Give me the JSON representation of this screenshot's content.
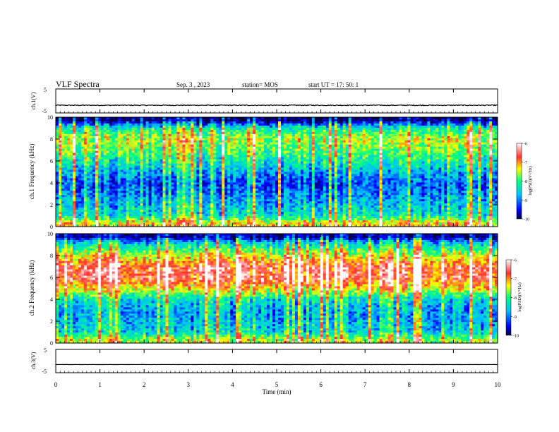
{
  "header": {
    "title": "VLF Spectra",
    "date": "Sep. 3  , 2023",
    "station": "station= MOS",
    "start": "start  UT =   17: 50: 1"
  },
  "colors": {
    "spectrum_scale": [
      "#000040",
      "#0000ff",
      "#00bfff",
      "#00ff80",
      "#ffff00",
      "#ff3030",
      "#ffffff"
    ],
    "frame": "#000000"
  },
  "chart_data": [
    {
      "type": "line",
      "ylabel": "ch.1(V)",
      "yticks": [
        "5",
        "-5"
      ],
      "ylim": [
        -5,
        5
      ],
      "x": [
        0,
        10
      ],
      "y": [
        -1.8,
        -1.8
      ]
    },
    {
      "type": "heatmap",
      "ylabel": "ch.1  Frequency (kHz)",
      "yticks": [
        "0",
        "2",
        "4",
        "6",
        "8",
        "10"
      ],
      "ylim": [
        0,
        10
      ],
      "xlim": [
        0,
        10
      ],
      "colorbar": {
        "label": "log(PSD)(V²/Hz)",
        "ticks": [
          "-6",
          "-7",
          "-8",
          "-9",
          "-10"
        ],
        "range": [
          -10,
          -6
        ]
      },
      "profile_freq_khz": [
        0.3,
        1,
        2,
        3,
        4,
        5,
        6,
        7,
        8,
        9,
        9.7
      ],
      "profile_log_psd": [
        -7.2,
        -8.3,
        -8.6,
        -8.9,
        -9.1,
        -8.7,
        -8.2,
        -7.8,
        -7.5,
        -8.2,
        -9.8
      ]
    },
    {
      "type": "heatmap",
      "ylabel": "ch.2  Frequency (kHz)",
      "yticks": [
        "0",
        "2",
        "4",
        "6",
        "8",
        "10"
      ],
      "ylim": [
        0,
        10
      ],
      "xlim": [
        0,
        10
      ],
      "colorbar": {
        "label": "log(PSD)(V²/Hz)",
        "ticks": [
          "-6",
          "-7",
          "-8",
          "-9",
          "-10"
        ],
        "range": [
          -10,
          -6
        ]
      },
      "profile_freq_khz": [
        0.3,
        1,
        2,
        3,
        4,
        5,
        6,
        7,
        8,
        9,
        9.7
      ],
      "profile_log_psd": [
        -7.5,
        -8.4,
        -8.6,
        -8.7,
        -8.3,
        -7.2,
        -6.5,
        -6.6,
        -7.4,
        -8.3,
        -9.6
      ]
    },
    {
      "type": "line",
      "ylabel": "ch.3(V)",
      "yticks": [
        "5",
        "-5"
      ],
      "ylim": [
        -5,
        5
      ],
      "x": [
        0,
        10
      ],
      "y": [
        -1.5,
        -1.5
      ]
    }
  ],
  "xaxis": {
    "label": "Time  (min)",
    "ticks": [
      "0",
      "1",
      "2",
      "3",
      "4",
      "5",
      "6",
      "7",
      "8",
      "9",
      "10"
    ]
  }
}
